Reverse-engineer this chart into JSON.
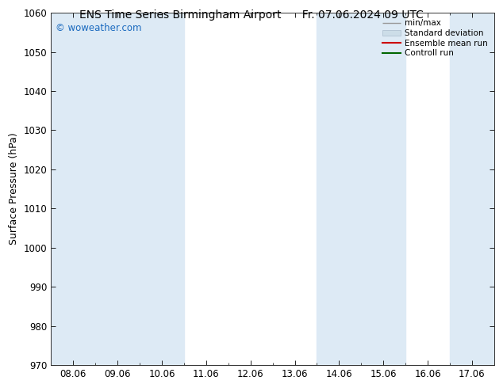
{
  "title_left": "ENS Time Series Birmingham Airport",
  "title_right": "Fr. 07.06.2024 09 UTC",
  "ylabel": "Surface Pressure (hPa)",
  "ylim": [
    970,
    1060
  ],
  "yticks": [
    970,
    980,
    990,
    1000,
    1010,
    1020,
    1030,
    1040,
    1050,
    1060
  ],
  "xtick_labels": [
    "08.06",
    "09.06",
    "10.06",
    "11.06",
    "12.06",
    "13.06",
    "14.06",
    "15.06",
    "16.06",
    "17.06"
  ],
  "watermark": "© woweather.com",
  "watermark_color": "#1a6abf",
  "bg_color": "#ffffff",
  "plot_bg_color": "#ffffff",
  "shaded_columns": [
    0,
    1,
    2,
    6,
    7,
    9
  ],
  "shaded_color": "#ddeaf5",
  "legend_labels": [
    "min/max",
    "Standard deviation",
    "Ensemble mean run",
    "Controll run"
  ],
  "title_fontsize": 10,
  "axis_label_fontsize": 9,
  "tick_fontsize": 8.5,
  "legend_fontsize": 7.5
}
